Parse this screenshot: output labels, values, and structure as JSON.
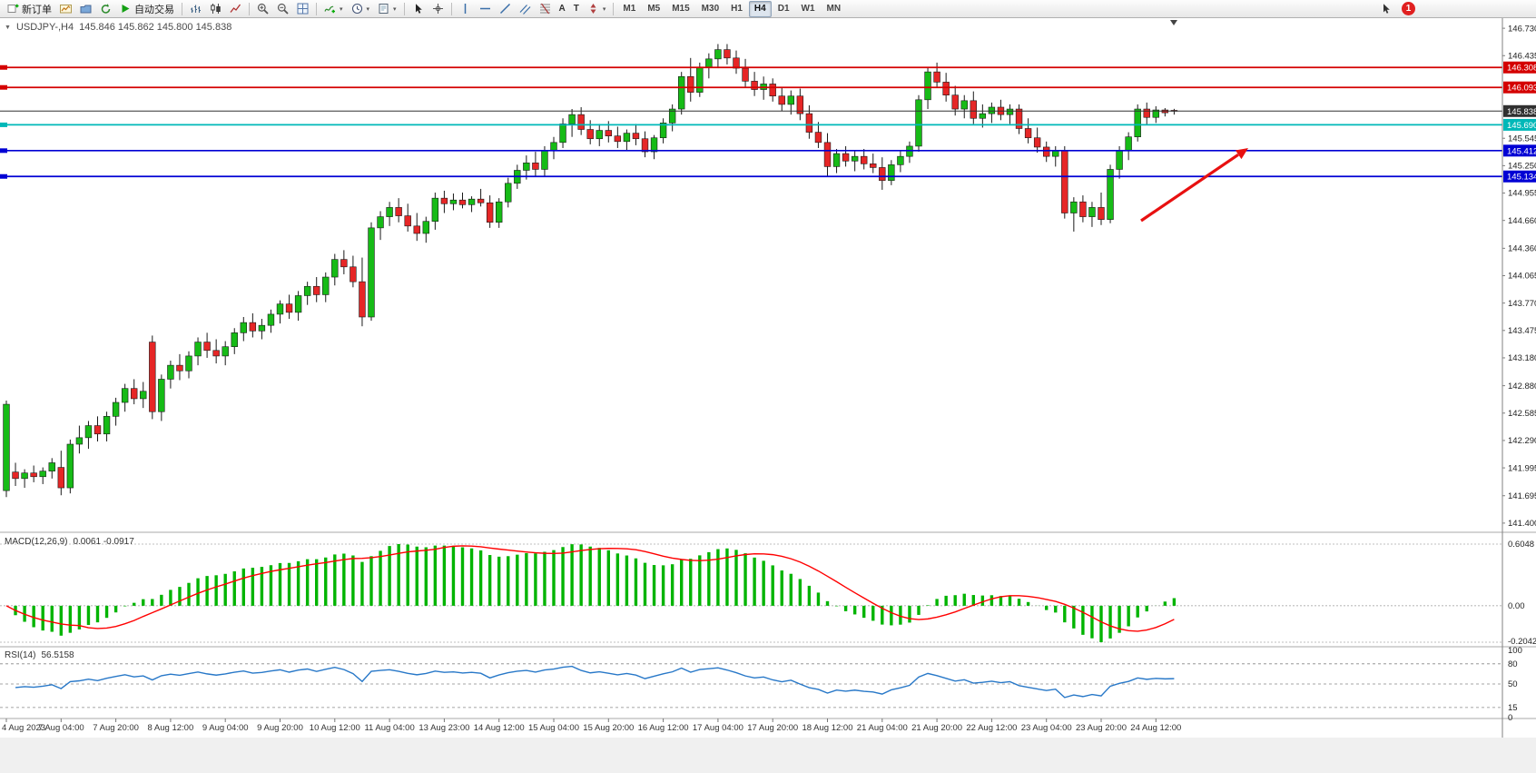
{
  "icons": {
    "collapse": "▼",
    "dropdown": "▾",
    "text_tool": "A",
    "label_tool": "T"
  },
  "toolbar": {
    "new_order_label": "新订单",
    "auto_trading_label": "自动交易",
    "timeframes": [
      "M1",
      "M5",
      "M15",
      "M30",
      "H1",
      "H4",
      "D1",
      "W1",
      "MN"
    ],
    "active_timeframe": "H4",
    "notification_count": "1"
  },
  "chart": {
    "symbol": "USDJPY-,H4",
    "ohlc_display": "145.846 145.862 145.800 145.838",
    "price_axis": {
      "min": 141.35,
      "max": 146.78,
      "ticks": [
        "146.730",
        "146.435",
        "145.545",
        "145.250",
        "144.955",
        "144.660",
        "144.360",
        "144.065",
        "143.770",
        "143.475",
        "143.180",
        "142.880",
        "142.585",
        "142.290",
        "141.995",
        "141.695",
        "141.400"
      ]
    },
    "hlines": [
      {
        "price": 146.308,
        "text": "146.308",
        "color": "#d40000"
      },
      {
        "price": 146.093,
        "text": "146.093",
        "color": "#d40000"
      },
      {
        "price": 145.69,
        "text": "145.690",
        "color": "#00b8b8"
      },
      {
        "price": 145.412,
        "text": "145.412",
        "color": "#0000d4"
      },
      {
        "price": 145.134,
        "text": "145.134",
        "color": "#0000d4"
      }
    ],
    "current_price": {
      "value": 145.838,
      "text": "145.838",
      "color": "#303030"
    },
    "arrow_color": "#e81010",
    "colors": {
      "up": "#16bb16",
      "down": "#e62626",
      "wick": "#1a1a1a",
      "bg": "#ffffff"
    }
  },
  "macd": {
    "name": "MACD(12,26,9)",
    "values": "0.0061 -0.0917",
    "axis": [
      "0.6048",
      "0.00",
      "-0.2042"
    ],
    "histogram_color": "#00b400",
    "signal_color": "#ff0000"
  },
  "rsi": {
    "name": "RSI(14)",
    "value": "56.5158",
    "axis": [
      100,
      80,
      50,
      15,
      0
    ],
    "levels": [
      80,
      50,
      15
    ],
    "line_color": "#2878c8"
  },
  "chart_data": {
    "type": "candlestick",
    "title": "USDJPY-,H4",
    "y_range": [
      141.35,
      146.78
    ],
    "label_every_n_candles": 6,
    "x_labels": [
      "4 Aug 2023",
      "7 Aug 04:00",
      "7 Aug 20:00",
      "8 Aug 12:00",
      "9 Aug 04:00",
      "9 Aug 20:00",
      "10 Aug 12:00",
      "11 Aug 04:00",
      "13 Aug 23:00",
      "14 Aug 12:00",
      "15 Aug 04:00",
      "15 Aug 20:00",
      "16 Aug 12:00",
      "17 Aug 04:00",
      "17 Aug 20:00",
      "18 Aug 12:00",
      "21 Aug 04:00",
      "21 Aug 20:00",
      "22 Aug 12:00",
      "23 Aug 04:00",
      "23 Aug 20:00",
      "24 Aug 12:00"
    ],
    "ohlc": [
      [
        141.75,
        142.72,
        141.68,
        142.68
      ],
      [
        141.95,
        142.05,
        141.8,
        141.88
      ],
      [
        141.88,
        141.98,
        141.78,
        141.94
      ],
      [
        141.94,
        142.02,
        141.84,
        141.9
      ],
      [
        141.9,
        142.0,
        141.82,
        141.96
      ],
      [
        141.96,
        142.1,
        141.88,
        142.05
      ],
      [
        142.0,
        142.18,
        141.7,
        141.78
      ],
      [
        141.78,
        142.3,
        141.72,
        142.25
      ],
      [
        142.25,
        142.45,
        142.15,
        142.32
      ],
      [
        142.32,
        142.5,
        142.2,
        142.45
      ],
      [
        142.45,
        142.55,
        142.28,
        142.36
      ],
      [
        142.36,
        142.6,
        142.28,
        142.55
      ],
      [
        142.55,
        142.75,
        142.45,
        142.7
      ],
      [
        142.7,
        142.9,
        142.6,
        142.85
      ],
      [
        142.85,
        142.95,
        142.68,
        142.74
      ],
      [
        142.74,
        142.92,
        142.64,
        142.82
      ],
      [
        143.35,
        143.42,
        142.52,
        142.6
      ],
      [
        142.6,
        143.0,
        142.5,
        142.95
      ],
      [
        142.95,
        143.15,
        142.85,
        143.1
      ],
      [
        143.1,
        143.22,
        142.94,
        143.04
      ],
      [
        143.04,
        143.25,
        142.96,
        143.2
      ],
      [
        143.2,
        143.4,
        143.1,
        143.35
      ],
      [
        143.35,
        143.45,
        143.18,
        143.26
      ],
      [
        143.26,
        143.38,
        143.12,
        143.2
      ],
      [
        143.2,
        143.36,
        143.1,
        143.3
      ],
      [
        143.3,
        143.5,
        143.22,
        143.45
      ],
      [
        143.45,
        143.62,
        143.36,
        143.56
      ],
      [
        143.56,
        143.66,
        143.4,
        143.47
      ],
      [
        143.47,
        143.6,
        143.38,
        143.53
      ],
      [
        143.53,
        143.7,
        143.45,
        143.65
      ],
      [
        143.65,
        143.8,
        143.55,
        143.76
      ],
      [
        143.76,
        143.86,
        143.6,
        143.67
      ],
      [
        143.67,
        143.9,
        143.58,
        143.85
      ],
      [
        143.85,
        144.0,
        143.75,
        143.95
      ],
      [
        143.95,
        144.05,
        143.78,
        143.86
      ],
      [
        143.86,
        144.1,
        143.78,
        144.05
      ],
      [
        144.05,
        144.3,
        143.96,
        144.24
      ],
      [
        144.24,
        144.34,
        144.08,
        144.16
      ],
      [
        144.16,
        144.28,
        143.94,
        144.0
      ],
      [
        144.0,
        144.26,
        143.52,
        143.62
      ],
      [
        143.62,
        144.64,
        143.58,
        144.58
      ],
      [
        144.58,
        144.76,
        144.45,
        144.7
      ],
      [
        144.7,
        144.86,
        144.6,
        144.8
      ],
      [
        144.8,
        144.9,
        144.64,
        144.71
      ],
      [
        144.71,
        144.84,
        144.54,
        144.6
      ],
      [
        144.6,
        144.74,
        144.44,
        144.52
      ],
      [
        144.52,
        144.7,
        144.42,
        144.65
      ],
      [
        144.65,
        144.96,
        144.56,
        144.9
      ],
      [
        144.9,
        144.98,
        144.74,
        144.84
      ],
      [
        144.84,
        144.95,
        144.77,
        144.88
      ],
      [
        144.88,
        144.96,
        144.79,
        144.83
      ],
      [
        144.83,
        144.92,
        144.75,
        144.89
      ],
      [
        144.89,
        145.0,
        144.81,
        144.85
      ],
      [
        144.85,
        144.93,
        144.58,
        144.64
      ],
      [
        144.64,
        144.9,
        144.58,
        144.86
      ],
      [
        144.86,
        145.12,
        144.8,
        145.06
      ],
      [
        145.06,
        145.26,
        145.0,
        145.2
      ],
      [
        145.2,
        145.36,
        145.1,
        145.28
      ],
      [
        145.28,
        145.4,
        145.14,
        145.21
      ],
      [
        145.21,
        145.46,
        145.14,
        145.41
      ],
      [
        145.41,
        145.56,
        145.32,
        145.5
      ],
      [
        145.5,
        145.76,
        145.44,
        145.7
      ],
      [
        145.7,
        145.86,
        145.56,
        145.8
      ],
      [
        145.8,
        145.88,
        145.58,
        145.64
      ],
      [
        145.64,
        145.74,
        145.48,
        145.54
      ],
      [
        145.54,
        145.7,
        145.46,
        145.63
      ],
      [
        145.63,
        145.73,
        145.5,
        145.57
      ],
      [
        145.57,
        145.67,
        145.44,
        145.51
      ],
      [
        145.51,
        145.64,
        145.41,
        145.6
      ],
      [
        145.6,
        145.7,
        145.47,
        145.54
      ],
      [
        145.54,
        145.62,
        145.34,
        145.4
      ],
      [
        145.4,
        145.58,
        145.32,
        145.55
      ],
      [
        145.55,
        145.76,
        145.49,
        145.71
      ],
      [
        145.71,
        145.91,
        145.62,
        145.86
      ],
      [
        145.86,
        146.26,
        145.8,
        146.21
      ],
      [
        146.21,
        146.41,
        145.94,
        146.04
      ],
      [
        146.04,
        146.36,
        145.99,
        146.31
      ],
      [
        146.31,
        146.46,
        146.19,
        146.4
      ],
      [
        146.4,
        146.56,
        146.3,
        146.5
      ],
      [
        146.5,
        146.56,
        146.34,
        146.41
      ],
      [
        146.41,
        146.49,
        146.24,
        146.3
      ],
      [
        146.3,
        146.4,
        146.09,
        146.16
      ],
      [
        146.16,
        146.26,
        146.0,
        146.07
      ],
      [
        146.07,
        146.21,
        145.96,
        146.13
      ],
      [
        146.13,
        146.19,
        145.94,
        146.0
      ],
      [
        146.0,
        146.1,
        145.84,
        145.91
      ],
      [
        145.91,
        146.06,
        145.8,
        146.0
      ],
      [
        146.0,
        146.08,
        145.74,
        145.81
      ],
      [
        145.81,
        145.9,
        145.54,
        145.61
      ],
      [
        145.61,
        145.72,
        145.44,
        145.5
      ],
      [
        145.5,
        145.6,
        145.14,
        145.24
      ],
      [
        145.24,
        145.43,
        145.17,
        145.38
      ],
      [
        145.38,
        145.46,
        145.24,
        145.3
      ],
      [
        145.3,
        145.41,
        145.19,
        145.35
      ],
      [
        145.35,
        145.43,
        145.21,
        145.27
      ],
      [
        145.27,
        145.38,
        145.17,
        145.23
      ],
      [
        145.23,
        145.34,
        144.99,
        145.09
      ],
      [
        145.09,
        145.31,
        145.04,
        145.26
      ],
      [
        145.26,
        145.41,
        145.18,
        145.35
      ],
      [
        145.35,
        145.51,
        145.28,
        145.46
      ],
      [
        145.46,
        146.01,
        145.4,
        145.96
      ],
      [
        145.96,
        146.31,
        145.86,
        146.26
      ],
      [
        146.26,
        146.36,
        146.09,
        146.15
      ],
      [
        146.15,
        146.25,
        145.94,
        146.01
      ],
      [
        146.01,
        146.11,
        145.79,
        145.86
      ],
      [
        145.86,
        146.01,
        145.76,
        145.95
      ],
      [
        145.95,
        146.05,
        145.7,
        145.76
      ],
      [
        145.76,
        145.91,
        145.66,
        145.81
      ],
      [
        145.81,
        145.93,
        145.71,
        145.88
      ],
      [
        145.88,
        145.96,
        145.74,
        145.8
      ],
      [
        145.8,
        145.91,
        145.7,
        145.86
      ],
      [
        145.86,
        145.91,
        145.59,
        145.65
      ],
      [
        145.65,
        145.76,
        145.49,
        145.55
      ],
      [
        145.55,
        145.66,
        145.39,
        145.45
      ],
      [
        145.45,
        145.51,
        145.29,
        145.35
      ],
      [
        145.35,
        145.46,
        145.24,
        145.41
      ],
      [
        145.41,
        145.46,
        144.68,
        144.74
      ],
      [
        144.74,
        144.91,
        144.54,
        144.86
      ],
      [
        144.86,
        144.93,
        144.64,
        144.7
      ],
      [
        144.7,
        144.86,
        144.59,
        144.8
      ],
      [
        144.8,
        144.96,
        144.61,
        144.67
      ],
      [
        144.67,
        145.26,
        144.63,
        145.21
      ],
      [
        145.21,
        145.46,
        145.11,
        145.41
      ],
      [
        145.41,
        145.61,
        145.31,
        145.56
      ],
      [
        145.56,
        145.91,
        145.51,
        145.86
      ],
      [
        145.86,
        145.93,
        145.69,
        145.77
      ],
      [
        145.77,
        145.89,
        145.71,
        145.85
      ],
      [
        145.85,
        145.87,
        145.78,
        145.82
      ],
      [
        145.846,
        145.862,
        145.8,
        145.838
      ]
    ],
    "indicators": [
      {
        "type": "MACD",
        "params": [
          12,
          26,
          9
        ],
        "last_main": 0.0061,
        "last_signal": -0.0917,
        "scale": [
          -0.2042,
          0.6048
        ]
      },
      {
        "type": "RSI",
        "params": [
          14
        ],
        "last_value": 56.5158,
        "levels": [
          80,
          50,
          15
        ],
        "scale": [
          0,
          100
        ]
      }
    ]
  }
}
